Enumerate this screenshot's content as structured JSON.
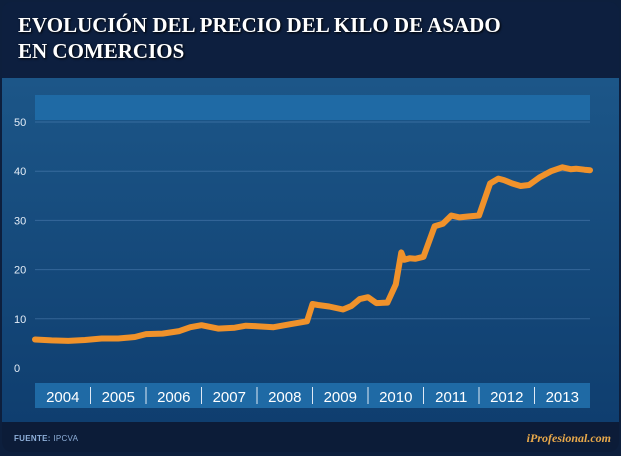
{
  "title_line1": "EVOLUCIÓN DEL PRECIO DEL KILO DE ASADO",
  "title_line2": "EN COMERCIOS",
  "footer": {
    "source_label": "FUENTE:",
    "source_value": "IPCVA",
    "brand": "iProfesional.com"
  },
  "colors": {
    "line": "#f0922b",
    "background_top": "#1c5688",
    "background_bottom": "#0f3e6f",
    "axis_band": "#1f6aa5"
  },
  "chart_data": {
    "type": "line",
    "title": "EVOLUCIÓN DEL PRECIO DEL KILO DE ASADO EN COMERCIOS",
    "xlabel": "",
    "ylabel": "",
    "xlim": [
      2004,
      2014
    ],
    "ylim": [
      0,
      50
    ],
    "yticks": [
      0,
      10,
      20,
      30,
      40,
      50
    ],
    "categories": [
      "2004",
      "2005",
      "2006",
      "2007",
      "2008",
      "2009",
      "2010",
      "2011",
      "2012",
      "2013"
    ],
    "grid": true,
    "series": [
      {
        "x": [
          2004.0,
          2004.3,
          2004.6,
          2004.9,
          2005.2,
          2005.5,
          2005.8,
          2006.0,
          2006.3,
          2006.6,
          2006.8,
          2007.0,
          2007.3,
          2007.6,
          2007.8,
          2008.0,
          2008.3,
          2008.6,
          2008.9,
          2009.0,
          2009.1,
          2009.3,
          2009.55,
          2009.7,
          2009.85,
          2010.0,
          2010.15,
          2010.35,
          2010.5,
          2010.6,
          2010.65,
          2010.75,
          2010.85,
          2011.0,
          2011.2,
          2011.35,
          2011.5,
          2011.65,
          2011.8,
          2012.0,
          2012.2,
          2012.35,
          2012.45,
          2012.6,
          2012.75,
          2012.9,
          2013.1,
          2013.3,
          2013.5,
          2013.65,
          2013.75,
          2013.9,
          2014.0
        ],
        "y": [
          5.8,
          5.6,
          5.5,
          5.7,
          6.0,
          6.0,
          6.3,
          6.9,
          7.0,
          7.5,
          8.3,
          8.7,
          8.0,
          8.2,
          8.6,
          8.5,
          8.3,
          8.9,
          9.5,
          13.0,
          12.8,
          12.5,
          11.9,
          12.6,
          14.0,
          14.4,
          13.2,
          13.3,
          17.0,
          23.5,
          22.0,
          22.3,
          22.2,
          22.6,
          28.8,
          29.3,
          31.0,
          30.6,
          30.8,
          31.0,
          37.5,
          38.5,
          38.2,
          37.5,
          37.0,
          37.2,
          38.8,
          40.0,
          40.8,
          40.4,
          40.5,
          40.3,
          40.2
        ]
      }
    ]
  }
}
